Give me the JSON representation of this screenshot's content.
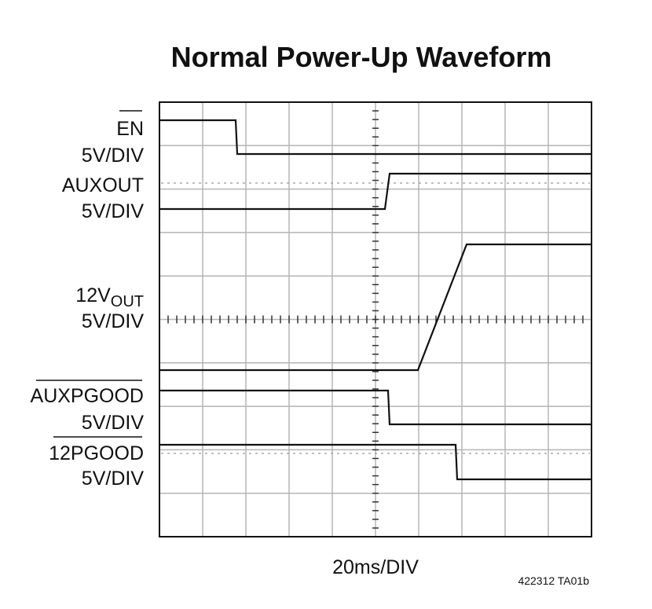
{
  "title": "Normal Power-Up Waveform",
  "channels": [
    {
      "name": "EN",
      "scale": "5V/DIV"
    },
    {
      "name": "AUXOUT",
      "scale": "5V/DIV"
    },
    {
      "name": "12V",
      "name_sub": "OUT",
      "scale": "5V/DIV"
    },
    {
      "name": "AUXPGOOD",
      "scale": "5V/DIV"
    },
    {
      "name": "12PGOOD",
      "scale": "5V/DIV"
    }
  ],
  "x_scale": "20ms/DIV",
  "figure_id": "422312 TA01b"
}
